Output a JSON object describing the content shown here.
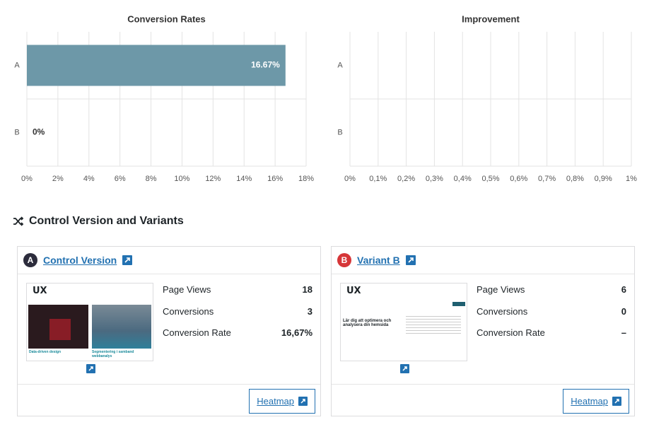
{
  "chart_data": [
    {
      "type": "bar",
      "orientation": "horizontal",
      "title": "Conversion Rates",
      "categories": [
        "A",
        "B"
      ],
      "values": [
        16.67,
        0
      ],
      "value_labels": [
        "16.67%",
        "0%"
      ],
      "color": "#6d98a8",
      "xlim": [
        0,
        18
      ],
      "xticks": [
        {
          "value": 0,
          "label": "0%"
        },
        {
          "value": 2,
          "label": "2%"
        },
        {
          "value": 4,
          "label": "4%"
        },
        {
          "value": 6,
          "label": "6%"
        },
        {
          "value": 8,
          "label": "8%"
        },
        {
          "value": 10,
          "label": "10%"
        },
        {
          "value": 12,
          "label": "12%"
        },
        {
          "value": 14,
          "label": "14%"
        },
        {
          "value": 16,
          "label": "16%"
        },
        {
          "value": 18,
          "label": "18%"
        }
      ],
      "grid": true
    },
    {
      "type": "bar",
      "orientation": "horizontal",
      "title": "Improvement",
      "categories": [
        "A",
        "B"
      ],
      "xlim": [
        0,
        1
      ],
      "xticks": [
        {
          "value": 0,
          "label": "0%"
        },
        {
          "value": 0.1,
          "label": "0,1%"
        },
        {
          "value": 0.2,
          "label": "0,2%"
        },
        {
          "value": 0.3,
          "label": "0,3%"
        },
        {
          "value": 0.4,
          "label": "0,4%"
        },
        {
          "value": 0.5,
          "label": "0,5%"
        },
        {
          "value": 0.6,
          "label": "0,6%"
        },
        {
          "value": 0.7,
          "label": "0,7%"
        },
        {
          "value": 0.8,
          "label": "0,8%"
        },
        {
          "value": 0.9,
          "label": "0,9%"
        },
        {
          "value": 1,
          "label": "1%"
        }
      ],
      "grid": true
    }
  ],
  "section": {
    "title": "Control Version and Variants"
  },
  "cards": [
    {
      "badge": "A",
      "title": "Control Version",
      "thumbnail": {
        "logo": "UX",
        "captions": [
          "Data-driven design",
          "Segmentering i samband webbanalys"
        ]
      },
      "stats": [
        {
          "label": "Page Views",
          "value": 18
        },
        {
          "label": "Conversions",
          "value": 3
        },
        {
          "label": "Conversion Rate",
          "value": "16,67%"
        }
      ],
      "button": "Heatmap"
    },
    {
      "badge": "B",
      "title": "Variant B",
      "thumbnail": {
        "logo": "UX",
        "captions": [
          "Lär dig att optimera och analysera din hemsida"
        ]
      },
      "stats": [
        {
          "label": "Page Views",
          "value": 6
        },
        {
          "label": "Conversions",
          "value": 0
        },
        {
          "label": "Conversion Rate",
          "value": "–"
        }
      ],
      "button": "Heatmap"
    }
  ]
}
